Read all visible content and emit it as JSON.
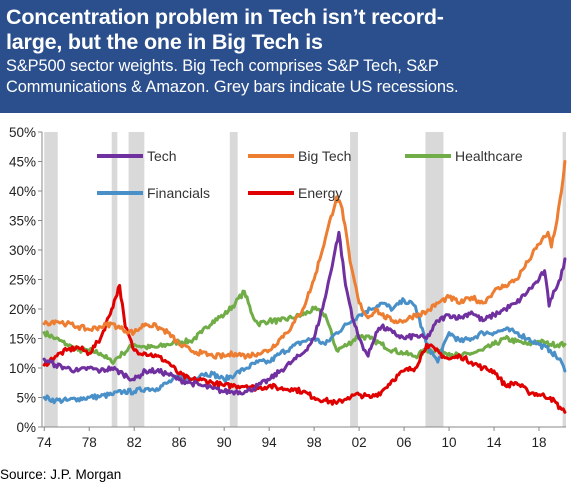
{
  "header": {
    "title_line1": "Concentration problem in Tech isn’t record-",
    "title_line2": "large, but the one in Big Tech is",
    "subtitle_line1": "S&P500 sector weights. Big Tech comprises S&P Tech, S&P",
    "subtitle_line2": "Communications & Amazon.  Grey bars indicate US recessions."
  },
  "source": "Source: J.P. Morgan",
  "colors": {
    "header_bg": "#2b4f8c",
    "tech": "#7030a0",
    "big_tech": "#ed7d31",
    "healthcare": "#70ad47",
    "financials": "#4a90c8",
    "energy": "#e00000",
    "recession": "#d9d9d9"
  },
  "chart_data": {
    "type": "line",
    "title": "",
    "xlabel": "",
    "ylabel": "",
    "xlim": [
      1973.8,
      2020.4
    ],
    "ylim": [
      0,
      50
    ],
    "x_ticks": [
      "74",
      "78",
      "82",
      "86",
      "90",
      "94",
      "98",
      "02",
      "06",
      "10",
      "14",
      "18"
    ],
    "y_ticks": [
      "0%",
      "5%",
      "10%",
      "15%",
      "20%",
      "25%",
      "30%",
      "35%",
      "40%",
      "45%",
      "50%"
    ],
    "grid": false,
    "legend": "top",
    "recessions": [
      [
        1974.0,
        1975.2
      ],
      [
        1980.0,
        1980.5
      ],
      [
        1981.5,
        1982.9
      ],
      [
        1990.5,
        1991.2
      ],
      [
        2001.2,
        2001.9
      ],
      [
        2007.9,
        2009.5
      ],
      [
        2020.1,
        2020.4
      ]
    ],
    "series": [
      {
        "name": "Tech",
        "key": "tech",
        "points": [
          [
            1974,
            11.5
          ],
          [
            1975,
            10.5
          ],
          [
            1976,
            10
          ],
          [
            1977,
            9.5
          ],
          [
            1978,
            10
          ],
          [
            1979,
            9.5
          ],
          [
            1980,
            10
          ],
          [
            1981,
            9
          ],
          [
            1982,
            8
          ],
          [
            1983,
            9.5
          ],
          [
            1984,
            9.5
          ],
          [
            1985,
            9
          ],
          [
            1986,
            8
          ],
          [
            1987,
            7.5
          ],
          [
            1988,
            7
          ],
          [
            1989,
            6.5
          ],
          [
            1990,
            6
          ],
          [
            1991,
            6
          ],
          [
            1992,
            6
          ],
          [
            1993,
            7
          ],
          [
            1994,
            8
          ],
          [
            1995,
            9.5
          ],
          [
            1996,
            11
          ],
          [
            1997,
            12.5
          ],
          [
            1998,
            15
          ],
          [
            1999,
            22
          ],
          [
            2000.2,
            33
          ],
          [
            2000.8,
            24
          ],
          [
            2001.5,
            18
          ],
          [
            2002,
            15
          ],
          [
            2002.8,
            12
          ],
          [
            2003.5,
            16
          ],
          [
            2004,
            17
          ],
          [
            2005,
            16
          ],
          [
            2006,
            15
          ],
          [
            2007,
            15.5
          ],
          [
            2008,
            15
          ],
          [
            2009,
            18
          ],
          [
            2010,
            19
          ],
          [
            2011,
            18.5
          ],
          [
            2012,
            19.5
          ],
          [
            2013,
            18
          ],
          [
            2014,
            19
          ],
          [
            2015,
            20
          ],
          [
            2016,
            21
          ],
          [
            2017,
            23
          ],
          [
            2018,
            25
          ],
          [
            2018.5,
            26.5
          ],
          [
            2018.9,
            20.5
          ],
          [
            2019.3,
            23
          ],
          [
            2019.9,
            25
          ],
          [
            2020.3,
            28.5
          ]
        ]
      },
      {
        "name": "Big Tech",
        "key": "big_tech",
        "points": [
          [
            1974,
            17.5
          ],
          [
            1975,
            18
          ],
          [
            1976,
            17.5
          ],
          [
            1977,
            17
          ],
          [
            1978,
            16.5
          ],
          [
            1979,
            17
          ],
          [
            1980,
            17.5
          ],
          [
            1981,
            16.5
          ],
          [
            1982,
            16
          ],
          [
            1983,
            17.5
          ],
          [
            1984,
            17
          ],
          [
            1985,
            16
          ],
          [
            1986,
            14
          ],
          [
            1987,
            13
          ],
          [
            1988,
            12.5
          ],
          [
            1989,
            12
          ],
          [
            1990,
            12
          ],
          [
            1991,
            12.5
          ],
          [
            1992,
            12
          ],
          [
            1993,
            12.5
          ],
          [
            1994,
            13
          ],
          [
            1995,
            15
          ],
          [
            1996,
            17
          ],
          [
            1997,
            20
          ],
          [
            1998,
            25
          ],
          [
            1999,
            32
          ],
          [
            2000,
            39
          ],
          [
            2000.5,
            37
          ],
          [
            2001.2,
            28
          ],
          [
            2002,
            21
          ],
          [
            2002.8,
            18.5
          ],
          [
            2003.5,
            20
          ],
          [
            2004,
            19
          ],
          [
            2005,
            18
          ],
          [
            2006,
            18
          ],
          [
            2007,
            19
          ],
          [
            2008,
            19.5
          ],
          [
            2009,
            21
          ],
          [
            2010,
            22
          ],
          [
            2011,
            21
          ],
          [
            2012,
            22
          ],
          [
            2013,
            21
          ],
          [
            2014,
            23
          ],
          [
            2015,
            24
          ],
          [
            2016,
            25
          ],
          [
            2017,
            28
          ],
          [
            2018,
            31
          ],
          [
            2018.8,
            33
          ],
          [
            2019.1,
            30.5
          ],
          [
            2019.6,
            35
          ],
          [
            2020.0,
            40
          ],
          [
            2020.3,
            45
          ]
        ]
      },
      {
        "name": "Healthcare",
        "key": "healthcare",
        "points": [
          [
            1974,
            16
          ],
          [
            1975,
            15
          ],
          [
            1976,
            14
          ],
          [
            1977,
            13
          ],
          [
            1978,
            13
          ],
          [
            1979,
            12.5
          ],
          [
            1980,
            11
          ],
          [
            1981,
            12.5
          ],
          [
            1982,
            14
          ],
          [
            1983,
            13.5
          ],
          [
            1984,
            13.5
          ],
          [
            1985,
            14
          ],
          [
            1986,
            14.5
          ],
          [
            1987,
            14.5
          ],
          [
            1988,
            16
          ],
          [
            1989,
            18
          ],
          [
            1990,
            19
          ],
          [
            1991,
            21
          ],
          [
            1991.8,
            23
          ],
          [
            1992.5,
            19
          ],
          [
            1993,
            17.5
          ],
          [
            1994,
            18
          ],
          [
            1995,
            18
          ],
          [
            1996,
            18.5
          ],
          [
            1997,
            19
          ],
          [
            1998,
            20
          ],
          [
            1999,
            19
          ],
          [
            2000,
            13
          ],
          [
            2001,
            14
          ],
          [
            2002,
            15.5
          ],
          [
            2003,
            15
          ],
          [
            2004,
            14
          ],
          [
            2005,
            13
          ],
          [
            2006,
            12.5
          ],
          [
            2007,
            12
          ],
          [
            2008,
            13
          ],
          [
            2009,
            13
          ],
          [
            2010,
            12.5
          ],
          [
            2011,
            12
          ],
          [
            2012,
            12.5
          ],
          [
            2013,
            13
          ],
          [
            2014,
            14
          ],
          [
            2015,
            15
          ],
          [
            2016,
            14.5
          ],
          [
            2017,
            14
          ],
          [
            2018,
            14.5
          ],
          [
            2019,
            14
          ],
          [
            2020.3,
            14
          ]
        ]
      },
      {
        "name": "Financials",
        "key": "financials",
        "points": [
          [
            1974,
            5
          ],
          [
            1975,
            4.5
          ],
          [
            1976,
            4.5
          ],
          [
            1977,
            4.8
          ],
          [
            1978,
            5
          ],
          [
            1979,
            5.2
          ],
          [
            1980,
            5.5
          ],
          [
            1981,
            6
          ],
          [
            1982,
            6
          ],
          [
            1983,
            6.5
          ],
          [
            1984,
            6.5
          ],
          [
            1985,
            7.5
          ],
          [
            1986,
            8.5
          ],
          [
            1987,
            8
          ],
          [
            1988,
            9
          ],
          [
            1989,
            9
          ],
          [
            1990,
            8
          ],
          [
            1991,
            9
          ],
          [
            1992,
            10
          ],
          [
            1993,
            11
          ],
          [
            1994,
            11
          ],
          [
            1995,
            12.5
          ],
          [
            1996,
            13.5
          ],
          [
            1997,
            14.5
          ],
          [
            1998,
            15
          ],
          [
            1999,
            14
          ],
          [
            2000,
            16
          ],
          [
            2001,
            17.5
          ],
          [
            2002,
            19
          ],
          [
            2003,
            20
          ],
          [
            2004,
            21
          ],
          [
            2005,
            20
          ],
          [
            2006,
            21.5
          ],
          [
            2007,
            20.5
          ],
          [
            2008,
            14
          ],
          [
            2009,
            11
          ],
          [
            2010,
            16
          ],
          [
            2011,
            14.5
          ],
          [
            2012,
            15
          ],
          [
            2013,
            16
          ],
          [
            2014,
            16
          ],
          [
            2015,
            16.5
          ],
          [
            2016,
            16
          ],
          [
            2017,
            15
          ],
          [
            2018,
            14
          ],
          [
            2019,
            13
          ],
          [
            2020,
            11
          ],
          [
            2020.3,
            9.5
          ]
        ]
      },
      {
        "name": "Energy",
        "key": "energy",
        "points": [
          [
            1974,
            10.5
          ],
          [
            1975,
            12
          ],
          [
            1976,
            13
          ],
          [
            1977,
            13.5
          ],
          [
            1978,
            12.5
          ],
          [
            1979,
            15
          ],
          [
            1980,
            20
          ],
          [
            1980.7,
            24
          ],
          [
            1981.2,
            17
          ],
          [
            1982,
            13
          ],
          [
            1983,
            12.5
          ],
          [
            1984,
            12
          ],
          [
            1985,
            11
          ],
          [
            1986,
            9
          ],
          [
            1987,
            8
          ],
          [
            1988,
            8
          ],
          [
            1989,
            7.5
          ],
          [
            1990,
            7
          ],
          [
            1991,
            7
          ],
          [
            1992,
            7
          ],
          [
            1993,
            6.5
          ],
          [
            1994,
            7
          ],
          [
            1995,
            6.5
          ],
          [
            1996,
            6.5
          ],
          [
            1997,
            6
          ],
          [
            1998,
            5
          ],
          [
            1999,
            4.5
          ],
          [
            2000,
            4
          ],
          [
            2001,
            5
          ],
          [
            2002,
            5.5
          ],
          [
            2003,
            5
          ],
          [
            2004,
            6
          ],
          [
            2005,
            8
          ],
          [
            2006,
            9.5
          ],
          [
            2007,
            10
          ],
          [
            2008,
            14
          ],
          [
            2008.8,
            13
          ],
          [
            2009.5,
            12
          ],
          [
            2010,
            11.5
          ],
          [
            2011,
            12
          ],
          [
            2012,
            11
          ],
          [
            2013,
            10
          ],
          [
            2014,
            9.5
          ],
          [
            2015,
            7
          ],
          [
            2016,
            7.5
          ],
          [
            2017,
            6
          ],
          [
            2018,
            5.5
          ],
          [
            2019,
            5
          ],
          [
            2020,
            3
          ],
          [
            2020.3,
            2.5
          ]
        ]
      }
    ]
  }
}
